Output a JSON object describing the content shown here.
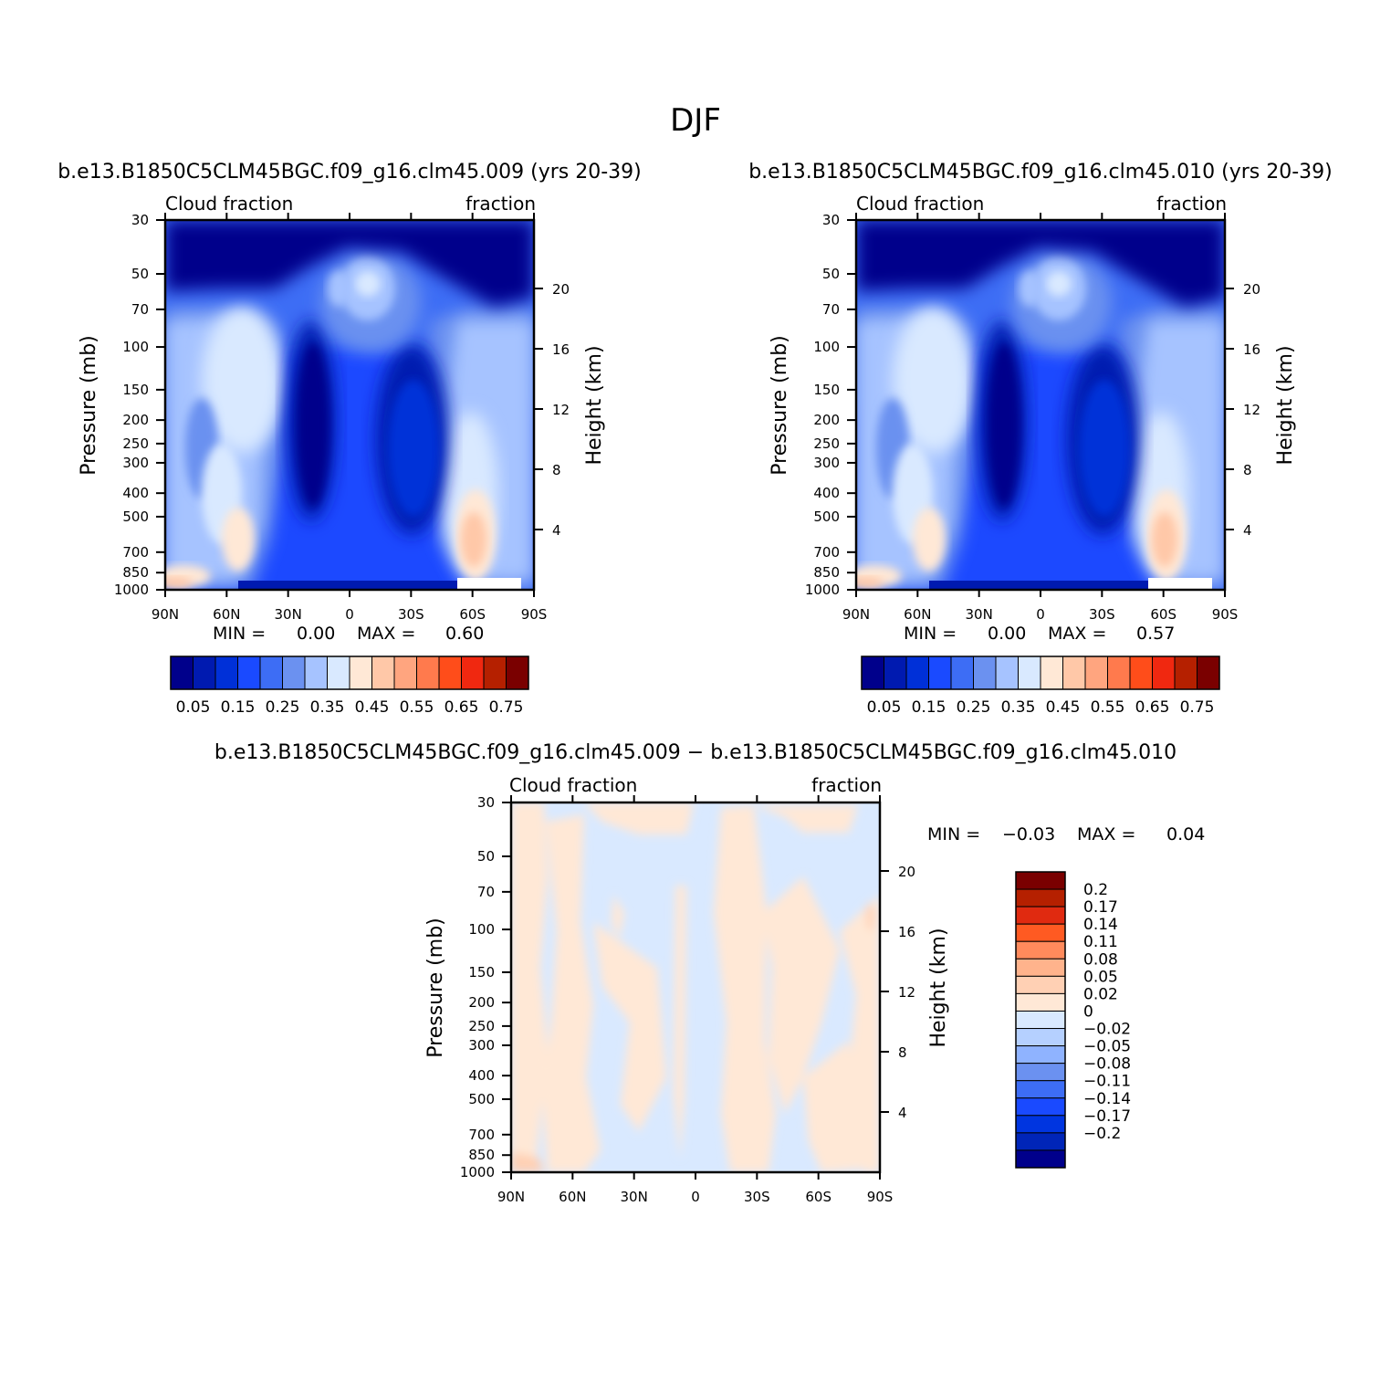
{
  "title": "DJF",
  "colors": {
    "abs_levels": [
      "#00008b",
      "#001ab0",
      "#0030d8",
      "#1a4aff",
      "#3d6df5",
      "#6b91f0",
      "#a6c3ff",
      "#d9e9ff",
      "#ffe8d6",
      "#ffc8a8",
      "#ffa57f",
      "#ff7a4d",
      "#ff4d1a",
      "#f02810",
      "#b52000",
      "#7a0000"
    ],
    "diff_levels": [
      "#00008b",
      "#0025b8",
      "#0035e0",
      "#1a4aff",
      "#3d6df5",
      "#6b91f0",
      "#8fb3ff",
      "#b5d0ff",
      "#d9e9ff",
      "#ffe8d6",
      "#ffd0b4",
      "#ffb38c",
      "#ff8a5c",
      "#ff5a22",
      "#e02a10",
      "#b52000",
      "#7a0000"
    ]
  },
  "chart_data": [
    {
      "type": "heatmap",
      "title": "b.e13.B1850C5CLM45BGC.f09_g16.clm45.009 (yrs 20-39)",
      "left_label": "Cloud fraction",
      "right_label": "fraction",
      "xlabel": "",
      "ylabel": "Pressure (mb)",
      "ylabel_right": "Height (km)",
      "x_ticks": [
        "90N",
        "60N",
        "30N",
        "0",
        "30S",
        "60S",
        "90S"
      ],
      "y_ticks": [
        "30",
        "50",
        "70",
        "100",
        "150",
        "200",
        "250",
        "300",
        "400",
        "500",
        "700",
        "850",
        "1000"
      ],
      "y_right_ticks": [
        "20",
        "16",
        "12",
        "8",
        "4"
      ],
      "stats": {
        "min_label": "MIN =",
        "min": "0.00",
        "max_label": "MAX =",
        "max": "0.60"
      },
      "colorbar_labels": [
        "0.05",
        "0.15",
        "0.25",
        "0.35",
        "0.45",
        "0.55",
        "0.65",
        "0.75"
      ]
    },
    {
      "type": "heatmap",
      "title": "b.e13.B1850C5CLM45BGC.f09_g16.clm45.010 (yrs 20-39)",
      "left_label": "Cloud fraction",
      "right_label": "fraction",
      "xlabel": "",
      "ylabel": "Pressure (mb)",
      "ylabel_right": "Height (km)",
      "x_ticks": [
        "90N",
        "60N",
        "30N",
        "0",
        "30S",
        "60S",
        "90S"
      ],
      "y_ticks": [
        "30",
        "50",
        "70",
        "100",
        "150",
        "200",
        "250",
        "300",
        "400",
        "500",
        "700",
        "850",
        "1000"
      ],
      "y_right_ticks": [
        "20",
        "16",
        "12",
        "8",
        "4"
      ],
      "stats": {
        "min_label": "MIN =",
        "min": "0.00",
        "max_label": "MAX =",
        "max": "0.57"
      },
      "colorbar_labels": [
        "0.05",
        "0.15",
        "0.25",
        "0.35",
        "0.45",
        "0.55",
        "0.65",
        "0.75"
      ]
    },
    {
      "type": "heatmap",
      "title": "b.e13.B1850C5CLM45BGC.f09_g16.clm45.009 − b.e13.B1850C5CLM45BGC.f09_g16.clm45.010",
      "left_label": "Cloud fraction",
      "right_label": "fraction",
      "xlabel": "",
      "ylabel": "Pressure (mb)",
      "ylabel_right": "Height (km)",
      "x_ticks": [
        "90N",
        "60N",
        "30N",
        "0",
        "30S",
        "60S",
        "90S"
      ],
      "y_ticks": [
        "30",
        "50",
        "70",
        "100",
        "150",
        "200",
        "250",
        "300",
        "400",
        "500",
        "700",
        "850",
        "1000"
      ],
      "y_right_ticks": [
        "20",
        "16",
        "12",
        "8",
        "4"
      ],
      "stats": {
        "min_label": "MIN =",
        "min": "−0.03",
        "max_label": "MAX =",
        "max": "0.04"
      },
      "colorbar_labels": [
        "0.2",
        "0.17",
        "0.14",
        "0.11",
        "0.08",
        "0.05",
        "0.02",
        "0",
        "−0.02",
        "−0.05",
        "−0.08",
        "−0.11",
        "−0.14",
        "−0.17",
        "−0.2"
      ]
    }
  ]
}
